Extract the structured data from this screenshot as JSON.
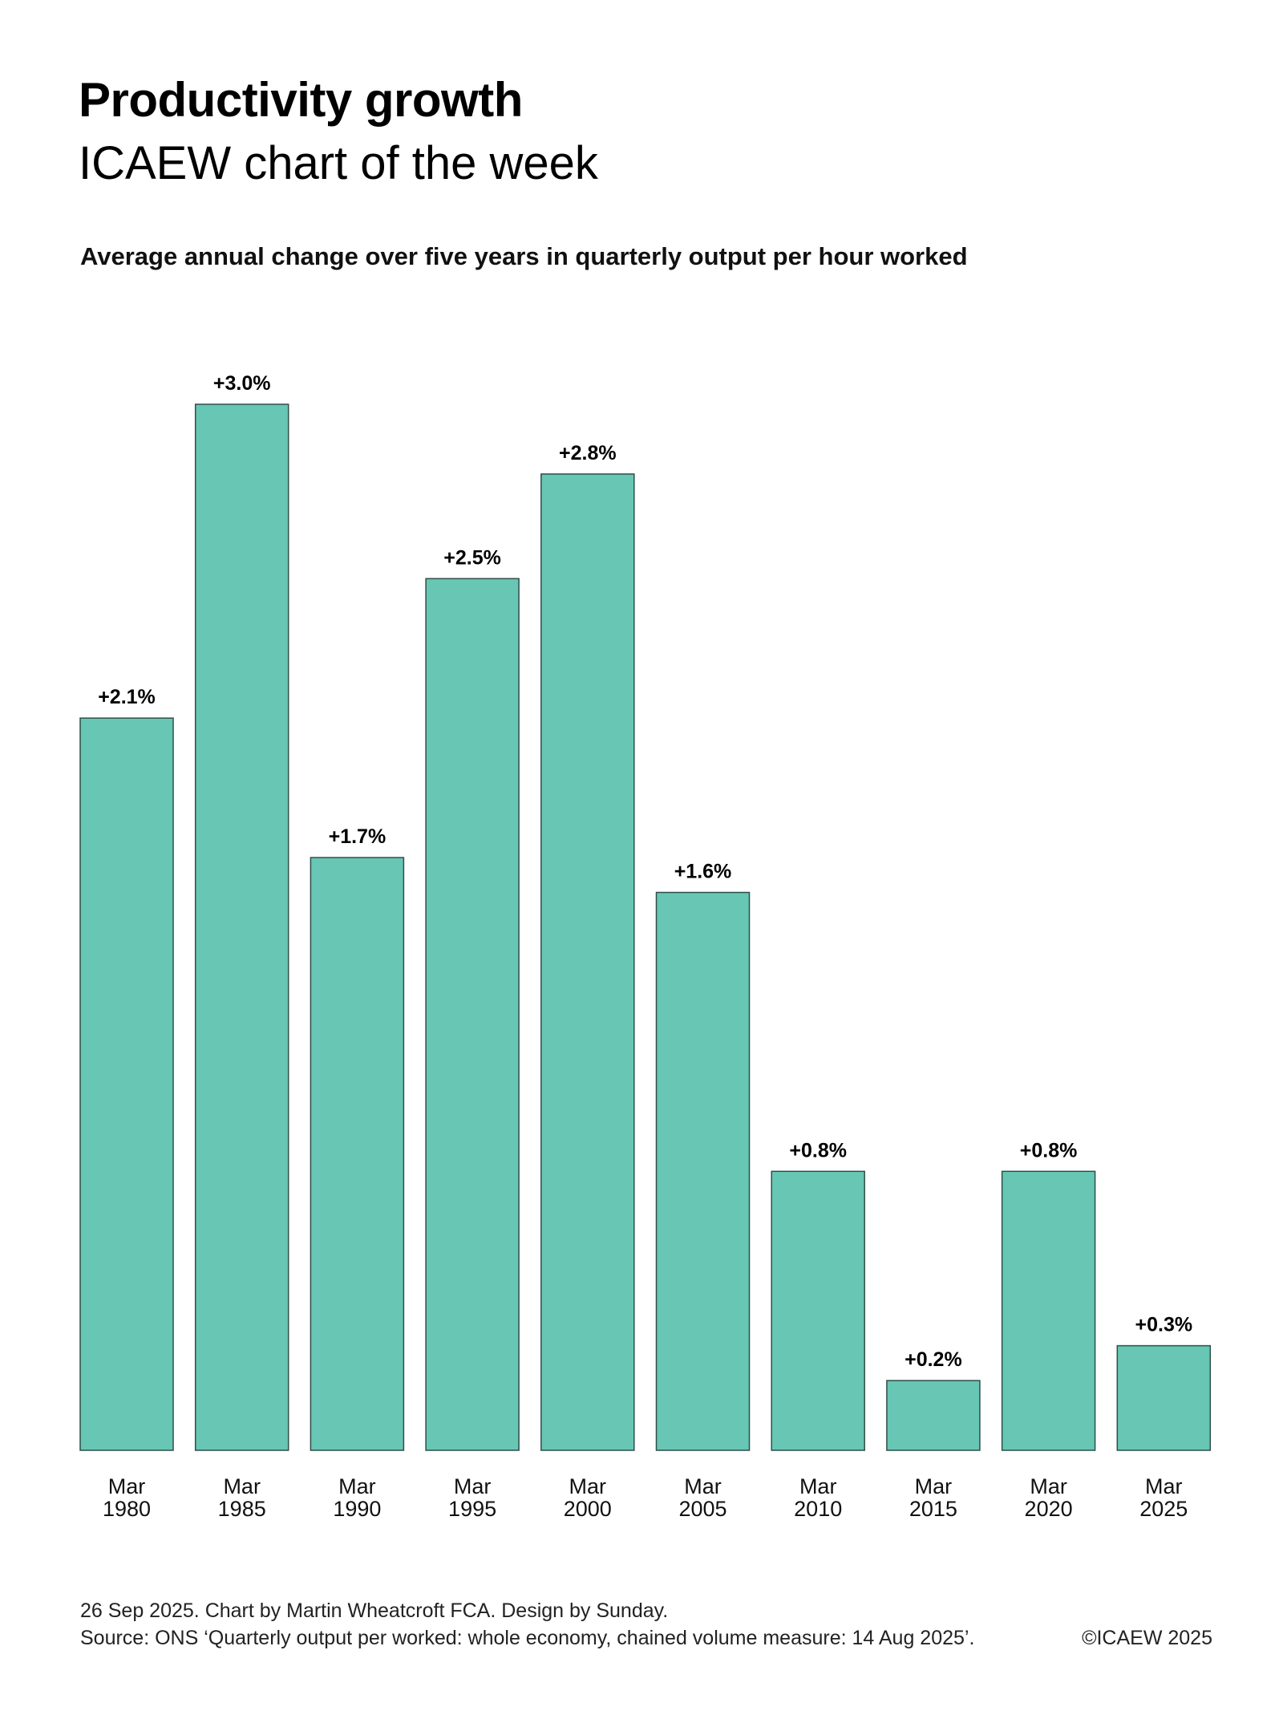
{
  "header": {
    "title": "Productivity growth",
    "subtitle": "ICAEW chart of the week"
  },
  "chart_data": {
    "type": "bar",
    "title": "Average annual change over five years in quarterly output per hour worked",
    "categories": [
      [
        "Mar",
        "1980"
      ],
      [
        "Mar",
        "1985"
      ],
      [
        "Mar",
        "1990"
      ],
      [
        "Mar",
        "1995"
      ],
      [
        "Mar",
        "2000"
      ],
      [
        "Mar",
        "2005"
      ],
      [
        "Mar",
        "2010"
      ],
      [
        "Mar",
        "2015"
      ],
      [
        "Mar",
        "2020"
      ],
      [
        "Mar",
        "2025"
      ]
    ],
    "values": [
      2.1,
      3.0,
      1.7,
      2.5,
      2.8,
      1.6,
      0.8,
      0.2,
      0.8,
      0.3
    ],
    "data_labels": [
      "+2.1%",
      "+3.0%",
      "+1.7%",
      "+2.5%",
      "+2.8%",
      "+1.6%",
      "+0.8%",
      "+0.2%",
      "+0.8%",
      "+0.3%"
    ],
    "ylim": [
      0,
      3.0
    ],
    "grid": false,
    "bar_color": "#67c6b4",
    "bar_edge_color": "#2f4f48"
  },
  "footer": {
    "credits": "26 Sep 2025.   Chart by Martin Wheatcroft FCA.  Design by Sunday.",
    "source": "Source: ONS ‘Quarterly output per worked: whole economy, chained volume measure: 14 Aug 2025’.",
    "copyright": "©ICAEW 2025"
  }
}
